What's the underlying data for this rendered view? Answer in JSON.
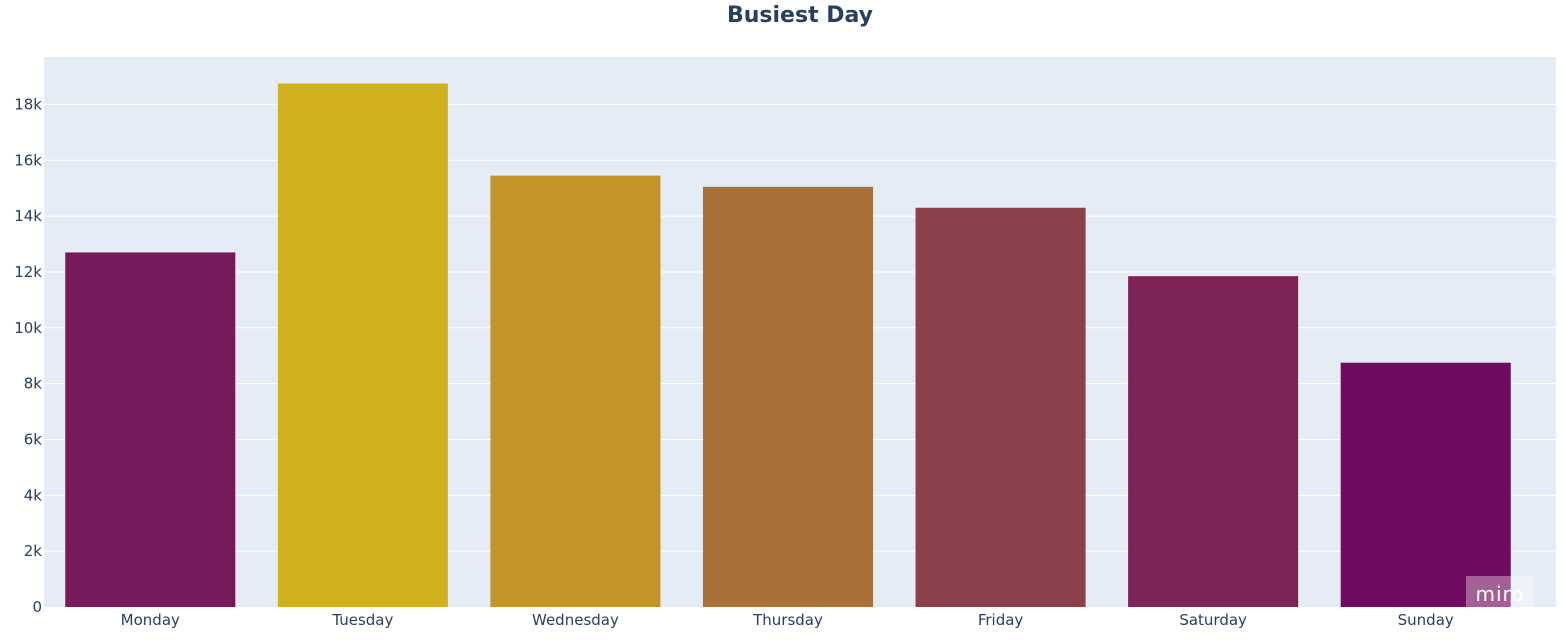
{
  "chart_data": {
    "type": "bar",
    "title": "Busiest Day",
    "xlabel": "",
    "ylabel": "",
    "categories": [
      "Monday",
      "Tuesday",
      "Wednesday",
      "Thursday",
      "Friday",
      "Saturday",
      "Sunday"
    ],
    "values": [
      12700,
      18750,
      15450,
      15050,
      14300,
      11850,
      8750
    ],
    "colors": [
      "#761a5a",
      "#d0b220",
      "#c1952a",
      "#a87237",
      "#8c404b",
      "#7e2356",
      "#700c60"
    ],
    "ylim": [
      0,
      19700
    ],
    "y_ticks": [
      0,
      2000,
      4000,
      6000,
      8000,
      10000,
      12000,
      14000,
      16000,
      18000
    ],
    "y_tick_labels": [
      "0",
      "2k",
      "4k",
      "6k",
      "8k",
      "10k",
      "12k",
      "14k",
      "16k",
      "18k"
    ],
    "grid": true,
    "legend": "none",
    "background_color": "#e5ecf6",
    "text_color": "#2a3f5f"
  },
  "watermark": {
    "text": "miro"
  }
}
